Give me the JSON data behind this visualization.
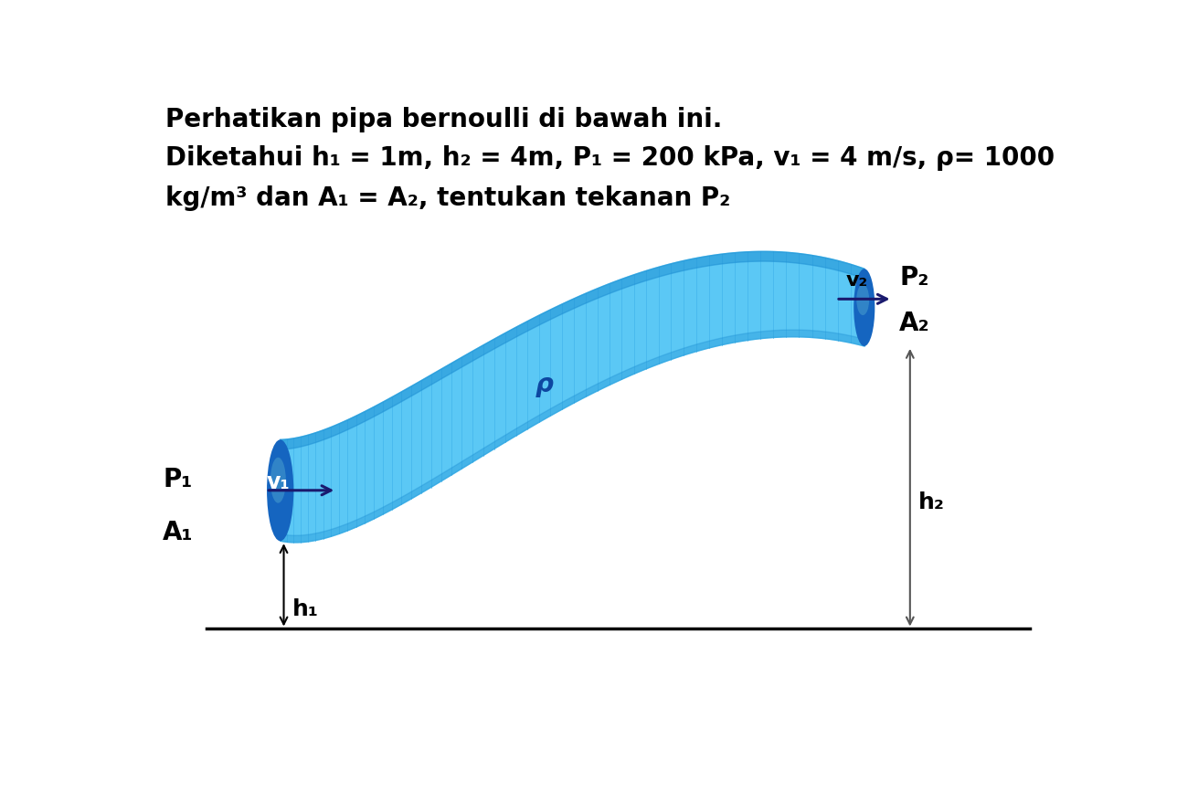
{
  "title_line1": "Perhatikan pipa bernoulli di bawah ini.",
  "title_line2": "Diketahui h₁ = 1m, h₂ = 4m, P₁ = 200 kPa, v₁ = 4 m/s, ρ= 1000",
  "title_line3": "kg/m³ dan A₁ = A₂, tentukan tekanan P₂",
  "label_P1": "P₁",
  "label_A1": "A₁",
  "label_v1": "v₁",
  "label_P2": "P₂",
  "label_A2": "A₂",
  "label_v2": "v₂",
  "label_h1": "h₁",
  "label_h2": "h₂",
  "label_rho": "ρ",
  "pipe_color_light": "#5BC8F5",
  "pipe_color_dark": "#1565C0",
  "pipe_color_mid": "#29ABE2",
  "bg_color": "#FFFFFF",
  "text_color": "#000000",
  "font_size_title": 20,
  "font_size_label": 18
}
